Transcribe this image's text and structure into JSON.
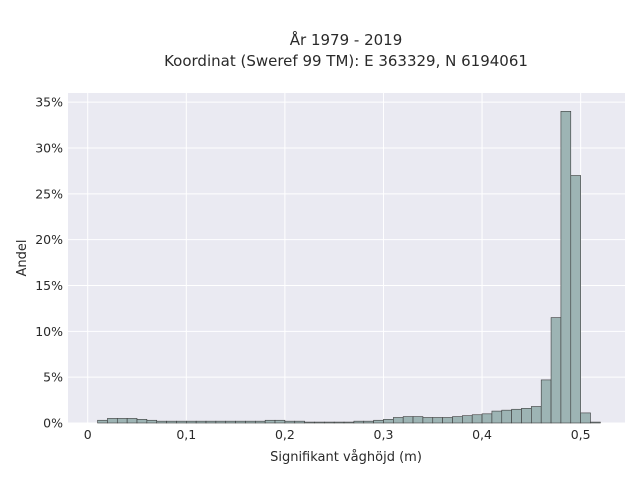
{
  "chart_data": {
    "type": "bar",
    "title_line1": "År 1979 - 2019",
    "title_line2": "Koordinat (Sweref 99 TM): E 363329, N 6194061",
    "xlabel": "Signifikant våghöjd (m)",
    "ylabel": "Andel",
    "xlim": [
      -0.02,
      0.545
    ],
    "ylim": [
      0,
      0.36
    ],
    "x_ticks": [
      0,
      0.1,
      0.2,
      0.3,
      0.4,
      0.5
    ],
    "x_tick_labels": [
      "0",
      "0,1",
      "0,2",
      "0,3",
      "0,4",
      "0,5"
    ],
    "y_ticks": [
      0,
      0.05,
      0.1,
      0.15,
      0.2,
      0.25,
      0.3,
      0.35
    ],
    "y_tick_labels": [
      "0%",
      "5%",
      "10%",
      "15%",
      "20%",
      "25%",
      "30%",
      "35%"
    ],
    "bin_width": 0.01,
    "bins_start": [
      0.01,
      0.02,
      0.03,
      0.04,
      0.05,
      0.06,
      0.07,
      0.08,
      0.09,
      0.1,
      0.11,
      0.12,
      0.13,
      0.14,
      0.15,
      0.16,
      0.17,
      0.18,
      0.19,
      0.2,
      0.21,
      0.22,
      0.23,
      0.24,
      0.25,
      0.26,
      0.27,
      0.28,
      0.29,
      0.3,
      0.31,
      0.32,
      0.33,
      0.34,
      0.35,
      0.36,
      0.37,
      0.38,
      0.39,
      0.4,
      0.41,
      0.42,
      0.43,
      0.44,
      0.45,
      0.46,
      0.47,
      0.48,
      0.49,
      0.5,
      0.51
    ],
    "values": [
      0.003,
      0.005,
      0.005,
      0.005,
      0.004,
      0.003,
      0.002,
      0.002,
      0.002,
      0.002,
      0.002,
      0.002,
      0.002,
      0.002,
      0.002,
      0.002,
      0.002,
      0.003,
      0.003,
      0.002,
      0.002,
      0.001,
      0.001,
      0.001,
      0.001,
      0.001,
      0.002,
      0.002,
      0.003,
      0.004,
      0.006,
      0.007,
      0.007,
      0.006,
      0.006,
      0.006,
      0.007,
      0.008,
      0.009,
      0.01,
      0.013,
      0.014,
      0.015,
      0.016,
      0.018,
      0.047,
      0.115,
      0.34,
      0.27,
      0.011,
      0.001
    ],
    "bar_color": "#9db4b4",
    "bar_edge_color": "#3a3a3a",
    "plot_bg": "#eaeaf2",
    "grid": true,
    "grid_color": "#ffffff"
  }
}
